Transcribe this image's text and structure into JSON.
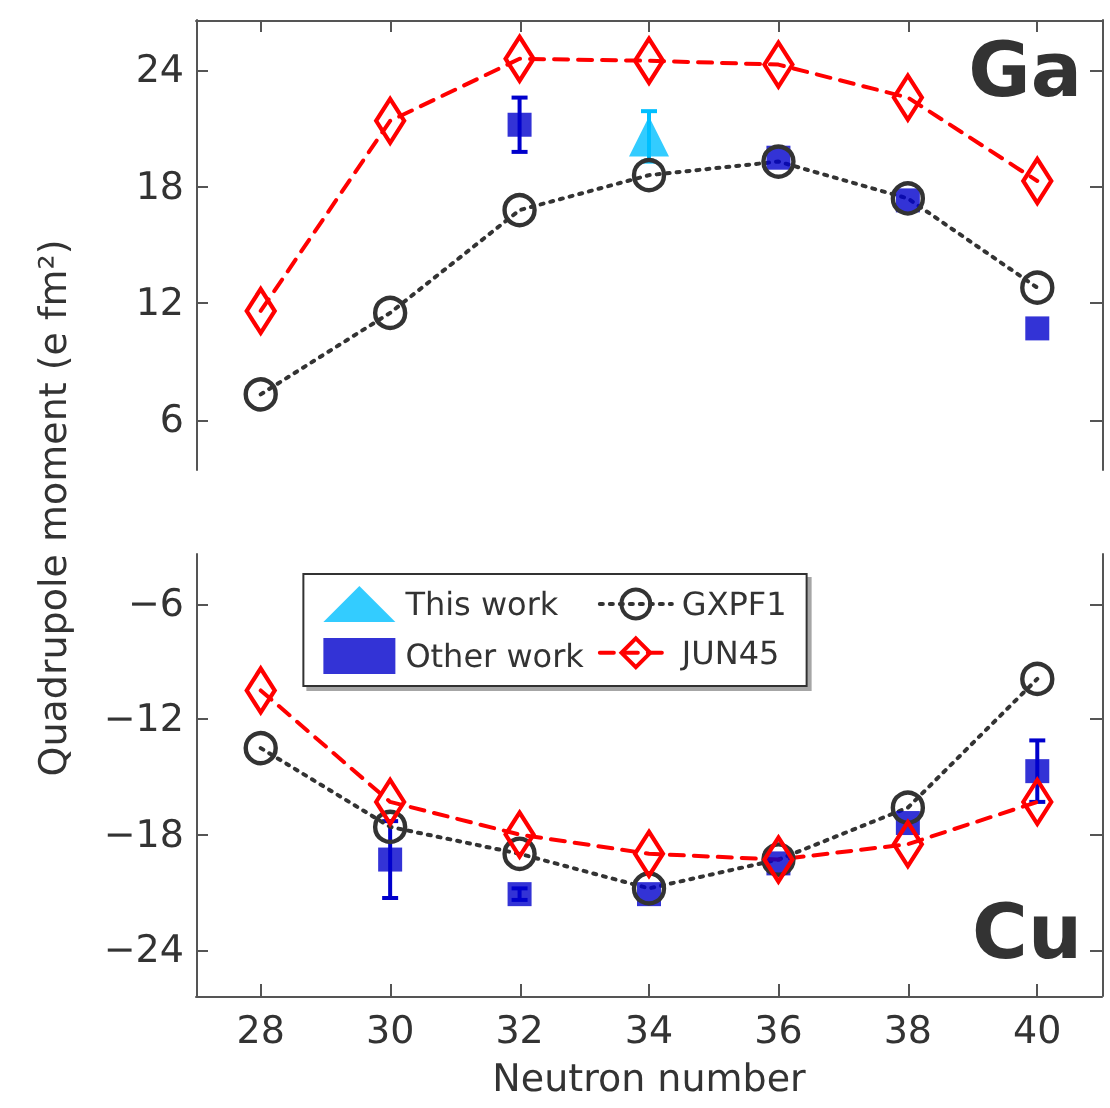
{
  "chart_data": [
    {
      "type": "scatter",
      "ylabel": "Quadrupole moment (e fm²)",
      "annotations": [
        "Ga"
      ],
      "xlim": [
        27,
        41
      ],
      "xticks": [
        28,
        30,
        32,
        34,
        36,
        38,
        40
      ],
      "ylim": [
        3.4,
        26.6
      ],
      "yticks": [
        6,
        12,
        18,
        24
      ],
      "tick_labels": "y",
      "grid": false,
      "legend": false,
      "series": [
        {
          "marker": "triangle",
          "color": "#00bfff",
          "x": [
            34
          ],
          "values": [
            20.6
          ],
          "errors": [
            1.3
          ]
        },
        {
          "marker": "square",
          "color": "#0000cc",
          "x": [
            32,
            36,
            38,
            40
          ],
          "values": [
            21.2,
            19.5,
            17.3,
            10.7
          ],
          "errors": [
            1.4,
            null,
            null,
            null
          ]
        },
        {
          "type": "line",
          "marker": "circle",
          "line_style": "dotted",
          "color": "#333333",
          "x": [
            28,
            30,
            32,
            34,
            36,
            38,
            40
          ],
          "values": [
            7.3,
            11.5,
            16.8,
            18.6,
            19.3,
            17.4,
            12.8
          ]
        },
        {
          "type": "line",
          "marker": "diamond",
          "line_style": "dashed",
          "color": "#ff0000",
          "x": [
            28,
            30,
            32,
            34,
            36,
            38,
            40
          ],
          "values": [
            11.6,
            21.4,
            24.6,
            24.5,
            24.3,
            22.6,
            18.3
          ]
        }
      ]
    },
    {
      "type": "scatter",
      "xlabel": "Neutron number",
      "annotations": [
        "Cu"
      ],
      "xlim": [
        27,
        41
      ],
      "xticks": [
        28,
        30,
        32,
        34,
        36,
        38,
        40
      ],
      "ylim": [
        -26.4,
        -3.4
      ],
      "yticks": [
        -24,
        -18,
        -12,
        -6
      ],
      "grid": false,
      "legend": "top",
      "series": [
        {
          "name": "This work",
          "marker": "triangle",
          "color": "#00bfff"
        },
        {
          "name": "Other work",
          "marker": "square",
          "color": "#0000cc",
          "x": [
            30,
            32,
            34,
            36,
            38,
            40
          ],
          "values": [
            -19.3,
            -21.1,
            -21.1,
            -19.5,
            -17.4,
            -14.7
          ],
          "errors": [
            2.0,
            0.3,
            null,
            null,
            null,
            1.6
          ]
        },
        {
          "type": "line",
          "name": "GXPF1",
          "marker": "circle",
          "line_style": "dotted",
          "color": "#333333",
          "x": [
            28,
            30,
            32,
            34,
            36,
            38,
            40
          ],
          "values": [
            -13.5,
            -17.6,
            -19.0,
            -20.8,
            -19.3,
            -16.6,
            -9.9
          ]
        },
        {
          "type": "line",
          "name": "JUN45",
          "marker": "diamond",
          "line_style": "dashed",
          "color": "#ff0000",
          "x": [
            28,
            30,
            32,
            34,
            36,
            38,
            40
          ],
          "values": [
            -10.5,
            -16.3,
            -18.0,
            -19.0,
            -19.3,
            -18.5,
            -16.3
          ]
        }
      ]
    }
  ]
}
